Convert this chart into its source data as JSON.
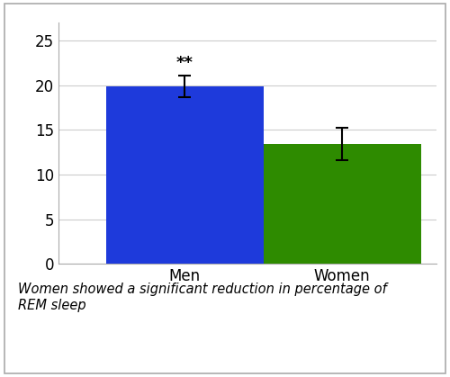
{
  "categories": [
    "Men",
    "Women"
  ],
  "values": [
    19.9,
    13.4
  ],
  "errors": [
    1.2,
    1.8
  ],
  "bar_colors": [
    "#1e3adb",
    "#2e8b00"
  ],
  "ylim": [
    0,
    27
  ],
  "yticks": [
    0,
    5,
    10,
    15,
    20,
    25
  ],
  "significance_label": "**",
  "significance_bar_index": 0,
  "caption_line1": "Women showed a significant reduction in percentage of",
  "caption_line2": "REM sleep",
  "background_color": "#ffffff",
  "plot_bg_color": "#ffffff",
  "grid_color": "#cccccc",
  "bar_width": 0.5,
  "caption_fontsize": 10.5,
  "tick_fontsize": 12,
  "sig_fontsize": 13,
  "border_color": "#aaaaaa"
}
